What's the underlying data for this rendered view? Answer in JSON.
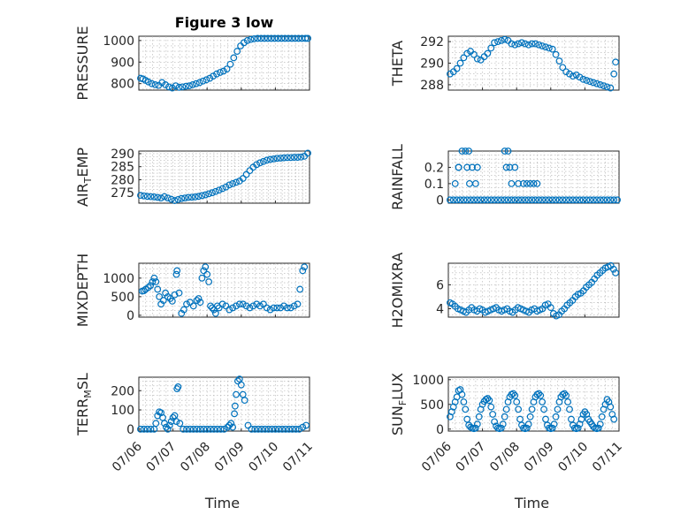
{
  "figure": {
    "title": "Figure 3 low",
    "xlabel": "Time",
    "marker_color": "#0072BD"
  },
  "chart_data": [
    {
      "type": "scatter",
      "title": "Figure 3 low",
      "ylabel": "PRESSURE",
      "ylabel_sub": "",
      "xlim": [
        0,
        5
      ],
      "ylim": [
        770,
        1020
      ],
      "yticks": [
        800,
        900,
        1000
      ],
      "x": [
        0.05,
        0.12,
        0.2,
        0.28,
        0.38,
        0.48,
        0.58,
        0.68,
        0.78,
        0.88,
        0.98,
        1.08,
        1.18,
        1.28,
        1.38,
        1.48,
        1.58,
        1.68,
        1.78,
        1.88,
        1.98,
        2.08,
        2.18,
        2.28,
        2.38,
        2.48,
        2.58,
        2.68,
        2.78,
        2.88,
        2.98,
        3.08,
        3.18,
        3.28,
        3.38,
        3.48,
        3.58,
        3.68,
        3.78,
        3.88,
        3.98,
        4.08,
        4.18,
        4.28,
        4.38,
        4.48,
        4.58,
        4.68,
        4.78,
        4.88,
        4.95
      ],
      "y": [
        825,
        822,
        815,
        808,
        800,
        795,
        792,
        805,
        795,
        785,
        780,
        790,
        783,
        785,
        788,
        790,
        795,
        800,
        805,
        812,
        818,
        825,
        835,
        845,
        852,
        858,
        868,
        890,
        920,
        950,
        975,
        990,
        1000,
        1005,
        1008,
        1010,
        1010,
        1010,
        1010,
        1010,
        1010,
        1010,
        1010,
        1010,
        1010,
        1010,
        1010,
        1010,
        1010,
        1010,
        1010
      ]
    },
    {
      "type": "scatter",
      "ylabel": "THETA",
      "ylabel_sub": "",
      "xlim": [
        0,
        5
      ],
      "ylim": [
        287.5,
        292.5
      ],
      "yticks": [
        288,
        290,
        292
      ],
      "x": [
        0.05,
        0.15,
        0.25,
        0.35,
        0.45,
        0.55,
        0.65,
        0.75,
        0.85,
        0.95,
        1.05,
        1.15,
        1.25,
        1.35,
        1.45,
        1.55,
        1.65,
        1.75,
        1.85,
        1.95,
        2.05,
        2.15,
        2.25,
        2.35,
        2.45,
        2.55,
        2.65,
        2.75,
        2.85,
        2.95,
        3.05,
        3.15,
        3.25,
        3.35,
        3.45,
        3.55,
        3.65,
        3.75,
        3.85,
        3.95,
        4.05,
        4.15,
        4.25,
        4.35,
        4.45,
        4.55,
        4.65,
        4.75,
        4.85,
        4.9
      ],
      "y": [
        289.0,
        289.2,
        289.5,
        290.0,
        290.5,
        290.9,
        291.1,
        290.8,
        290.4,
        290.3,
        290.6,
        290.9,
        291.4,
        291.9,
        292.0,
        292.1,
        292.2,
        292.1,
        291.8,
        291.7,
        291.8,
        291.9,
        291.8,
        291.7,
        291.8,
        291.8,
        291.7,
        291.6,
        291.5,
        291.4,
        291.3,
        290.8,
        290.2,
        289.6,
        289.2,
        289.0,
        288.8,
        288.9,
        288.7,
        288.5,
        288.4,
        288.3,
        288.2,
        288.1,
        288.0,
        287.9,
        287.8,
        287.7,
        289.0,
        290.1
      ]
    },
    {
      "type": "scatter",
      "ylabel": "AIR",
      "ylabel_sub": "T",
      "ylabel_tail": "EMP",
      "xlim": [
        0,
        5
      ],
      "ylim": [
        271,
        291
      ],
      "yticks": [
        275,
        280,
        285,
        290
      ],
      "x": [
        0.05,
        0.15,
        0.25,
        0.35,
        0.45,
        0.55,
        0.65,
        0.75,
        0.85,
        0.95,
        1.05,
        1.15,
        1.25,
        1.35,
        1.45,
        1.55,
        1.65,
        1.75,
        1.85,
        1.95,
        2.05,
        2.15,
        2.25,
        2.35,
        2.45,
        2.55,
        2.65,
        2.75,
        2.85,
        2.95,
        3.05,
        3.15,
        3.25,
        3.35,
        3.45,
        3.55,
        3.65,
        3.75,
        3.85,
        3.95,
        4.05,
        4.15,
        4.25,
        4.35,
        4.45,
        4.55,
        4.65,
        4.75,
        4.85,
        4.95
      ],
      "y": [
        274.0,
        273.8,
        273.6,
        273.5,
        273.4,
        273.2,
        273.0,
        273.5,
        273.0,
        272.5,
        272.0,
        272.4,
        272.8,
        273.0,
        273.2,
        273.3,
        273.4,
        273.6,
        273.9,
        274.2,
        274.6,
        275.0,
        275.5,
        276.0,
        276.6,
        277.2,
        278.0,
        278.5,
        279.0,
        279.5,
        280.5,
        282.0,
        283.5,
        284.8,
        285.8,
        286.5,
        287.0,
        287.5,
        287.8,
        288.0,
        288.2,
        288.3,
        288.4,
        288.5,
        288.5,
        288.6,
        288.6,
        288.7,
        289.0,
        290.2
      ]
    },
    {
      "type": "scatter",
      "ylabel": "RAINFALL",
      "ylabel_sub": "",
      "xlim": [
        0,
        5
      ],
      "ylim": [
        -0.02,
        0.3
      ],
      "yticks": [
        0,
        0.1,
        0.2
      ],
      "x": [
        0.05,
        0.15,
        0.25,
        0.35,
        0.45,
        0.55,
        0.65,
        0.75,
        0.85,
        0.95,
        1.05,
        1.15,
        1.25,
        1.35,
        1.45,
        1.55,
        1.65,
        1.75,
        1.85,
        1.95,
        2.05,
        2.15,
        2.25,
        2.35,
        2.45,
        2.55,
        2.65,
        2.75,
        2.85,
        2.95,
        3.05,
        3.15,
        3.25,
        3.35,
        3.45,
        3.55,
        3.65,
        3.75,
        3.85,
        3.95,
        4.05,
        4.15,
        4.25,
        4.35,
        4.45,
        4.55,
        4.65,
        4.75,
        4.85,
        4.95,
        0.2,
        0.3,
        0.4,
        0.5,
        0.55,
        0.7,
        0.8,
        0.85,
        0.3,
        0.6,
        1.65,
        1.75,
        1.8,
        1.95,
        2.05,
        1.7,
        1.85,
        2.2,
        2.3,
        2.4,
        2.5,
        2.6,
        0.62
      ],
      "y": [
        0,
        0,
        0,
        0,
        0,
        0,
        0,
        0,
        0,
        0,
        0,
        0,
        0,
        0,
        0,
        0,
        0,
        0,
        0,
        0,
        0,
        0,
        0,
        0,
        0,
        0,
        0,
        0,
        0,
        0,
        0,
        0,
        0,
        0,
        0,
        0,
        0,
        0,
        0,
        0,
        0,
        0,
        0,
        0,
        0,
        0,
        0,
        0,
        0,
        0,
        0.1,
        0.2,
        0.3,
        0.3,
        0.2,
        0.2,
        0.1,
        0.2,
        0.2,
        0.3,
        0.3,
        0.3,
        0.2,
        0.2,
        0.1,
        0.2,
        0.1,
        0.1,
        0.1,
        0.1,
        0.1,
        0.1,
        0.1
      ]
    },
    {
      "type": "scatter",
      "ylabel": "MIXDEPTH",
      "ylabel_sub": "",
      "xlim": [
        0,
        5
      ],
      "ylim": [
        -50,
        1400
      ],
      "yticks": [
        0,
        500,
        1000
      ],
      "x": [
        0.1,
        0.15,
        0.2,
        0.28,
        0.34,
        0.4,
        0.45,
        0.5,
        0.55,
        0.6,
        0.65,
        0.72,
        0.78,
        0.85,
        0.92,
        0.98,
        1.05,
        1.1,
        1.12,
        1.18,
        1.25,
        1.32,
        1.4,
        1.5,
        1.6,
        1.7,
        1.75,
        1.8,
        1.85,
        1.9,
        1.95,
        2.0,
        2.05,
        2.1,
        2.15,
        2.2,
        2.25,
        2.3,
        2.35,
        2.45,
        2.55,
        2.65,
        2.75,
        2.85,
        2.95,
        3.05,
        3.15,
        3.25,
        3.35,
        3.45,
        3.55,
        3.65,
        3.75,
        3.85,
        3.95,
        4.05,
        4.15,
        4.25,
        4.35,
        4.45,
        4.55,
        4.65,
        4.72,
        4.8,
        4.85
      ],
      "y": [
        650,
        660,
        700,
        750,
        800,
        900,
        1000,
        900,
        700,
        500,
        300,
        400,
        600,
        500,
        450,
        380,
        550,
        1100,
        1200,
        600,
        50,
        150,
        300,
        350,
        250,
        400,
        450,
        350,
        1000,
        1200,
        1300,
        1100,
        900,
        250,
        200,
        150,
        50,
        250,
        200,
        300,
        250,
        150,
        200,
        250,
        300,
        300,
        250,
        200,
        250,
        300,
        250,
        300,
        200,
        150,
        200,
        200,
        200,
        250,
        200,
        200,
        250,
        300,
        700,
        1200,
        1300
      ]
    },
    {
      "type": "scatter",
      "ylabel": "H2OMIXRA",
      "ylabel_sub": "",
      "xlim": [
        0,
        5
      ],
      "ylim": [
        3.3,
        7.8
      ],
      "yticks": [
        4,
        6
      ],
      "x": [
        0.05,
        0.12,
        0.2,
        0.28,
        0.36,
        0.44,
        0.52,
        0.6,
        0.68,
        0.76,
        0.84,
        0.92,
        1.0,
        1.08,
        1.16,
        1.24,
        1.32,
        1.4,
        1.48,
        1.56,
        1.64,
        1.72,
        1.8,
        1.88,
        1.96,
        2.04,
        2.12,
        2.2,
        2.28,
        2.36,
        2.44,
        2.52,
        2.6,
        2.68,
        2.76,
        2.84,
        2.92,
        3.0,
        3.08,
        3.16,
        3.24,
        3.32,
        3.4,
        3.48,
        3.56,
        3.64,
        3.72,
        3.8,
        3.88,
        3.96,
        4.04,
        4.12,
        4.2,
        4.28,
        4.36,
        4.44,
        4.52,
        4.6,
        4.68,
        4.76,
        4.84,
        4.9
      ],
      "y": [
        4.5,
        4.4,
        4.2,
        4.0,
        3.9,
        3.8,
        3.7,
        3.9,
        4.1,
        3.9,
        3.8,
        4.0,
        3.9,
        3.7,
        3.8,
        3.9,
        4.0,
        4.1,
        3.9,
        3.8,
        3.9,
        4.0,
        3.8,
        3.7,
        3.9,
        4.1,
        4.0,
        3.9,
        3.8,
        3.7,
        3.9,
        4.0,
        3.8,
        3.9,
        4.0,
        4.3,
        4.4,
        4.1,
        3.6,
        3.4,
        3.5,
        3.8,
        4.0,
        4.3,
        4.5,
        4.7,
        5.0,
        5.2,
        5.3,
        5.5,
        5.8,
        6.0,
        6.2,
        6.5,
        6.8,
        7.0,
        7.2,
        7.4,
        7.5,
        7.6,
        7.3,
        7.0
      ]
    },
    {
      "type": "scatter",
      "ylabel": "TERR",
      "ylabel_sub": "M",
      "ylabel_tail": "SL",
      "xlim": [
        0,
        5
      ],
      "ylim": [
        -10,
        270
      ],
      "yticks": [
        0,
        100,
        200
      ],
      "x": [
        0.05,
        0.15,
        0.25,
        0.35,
        0.45,
        0.5,
        0.55,
        0.6,
        0.65,
        0.7,
        0.75,
        0.8,
        0.85,
        0.9,
        0.95,
        1.0,
        1.05,
        1.1,
        1.12,
        1.15,
        1.2,
        1.3,
        1.4,
        1.5,
        1.6,
        1.7,
        1.8,
        1.9,
        2.0,
        2.1,
        2.2,
        2.3,
        2.4,
        2.5,
        2.6,
        2.65,
        2.7,
        2.75,
        2.8,
        2.82,
        2.85,
        2.9,
        2.95,
        3.0,
        3.05,
        3.1,
        3.2,
        3.3,
        3.4,
        3.5,
        3.6,
        3.7,
        3.8,
        3.9,
        4.0,
        4.1,
        4.2,
        4.3,
        4.4,
        4.5,
        4.6,
        4.7,
        4.8,
        4.9
      ],
      "y": [
        0,
        0,
        0,
        0,
        0,
        30,
        70,
        90,
        85,
        60,
        30,
        10,
        0,
        20,
        40,
        60,
        70,
        40,
        210,
        220,
        30,
        0,
        0,
        0,
        0,
        0,
        0,
        0,
        0,
        0,
        0,
        0,
        0,
        0,
        10,
        20,
        30,
        10,
        80,
        120,
        180,
        250,
        260,
        230,
        180,
        150,
        20,
        0,
        0,
        0,
        0,
        0,
        0,
        0,
        0,
        0,
        0,
        0,
        0,
        0,
        0,
        0,
        10,
        20
      ]
    },
    {
      "type": "scatter",
      "ylabel": "SUN",
      "ylabel_sub": "F",
      "ylabel_tail": "LUX",
      "xlim": [
        0,
        5
      ],
      "ylim": [
        -40,
        1050
      ],
      "yticks": [
        0,
        500,
        1000
      ],
      "x": [
        0.05,
        0.1,
        0.15,
        0.2,
        0.25,
        0.3,
        0.35,
        0.4,
        0.45,
        0.5,
        0.55,
        0.6,
        0.65,
        0.7,
        0.75,
        0.8,
        0.85,
        0.9,
        0.95,
        1.0,
        1.05,
        1.1,
        1.15,
        1.2,
        1.25,
        1.3,
        1.35,
        1.4,
        1.45,
        1.5,
        1.55,
        1.6,
        1.65,
        1.7,
        1.75,
        1.8,
        1.85,
        1.9,
        1.95,
        2.0,
        2.05,
        2.1,
        2.15,
        2.2,
        2.25,
        2.3,
        2.35,
        2.4,
        2.45,
        2.5,
        2.55,
        2.6,
        2.65,
        2.7,
        2.75,
        2.8,
        2.85,
        2.9,
        2.95,
        3.0,
        3.05,
        3.1,
        3.15,
        3.2,
        3.25,
        3.3,
        3.35,
        3.4,
        3.45,
        3.5,
        3.55,
        3.6,
        3.65,
        3.7,
        3.75,
        3.8,
        3.85,
        3.9,
        3.95,
        4.0,
        4.05,
        4.1,
        4.15,
        4.2,
        4.25,
        4.3,
        4.35,
        4.4,
        4.45,
        4.5,
        4.55,
        4.6,
        4.65,
        4.7,
        4.75,
        4.8,
        4.85
      ],
      "y": [
        250,
        350,
        450,
        550,
        650,
        780,
        800,
        700,
        550,
        400,
        200,
        80,
        40,
        20,
        10,
        20,
        100,
        250,
        400,
        500,
        560,
        600,
        620,
        580,
        450,
        300,
        150,
        60,
        20,
        10,
        20,
        100,
        250,
        400,
        550,
        650,
        700,
        720,
        680,
        550,
        400,
        200,
        80,
        20,
        10,
        20,
        100,
        250,
        400,
        550,
        650,
        700,
        720,
        680,
        550,
        400,
        200,
        80,
        20,
        10,
        20,
        100,
        250,
        400,
        550,
        650,
        700,
        720,
        680,
        550,
        400,
        200,
        80,
        20,
        10,
        20,
        100,
        200,
        300,
        350,
        300,
        200,
        150,
        100,
        50,
        20,
        10,
        20,
        100,
        250,
        400,
        500,
        600,
        550,
        450,
        300,
        200
      ]
    }
  ],
  "x_axis": {
    "tick_labels": [
      "07/06",
      "07/07",
      "07/08",
      "07/09",
      "07/10",
      "07/11"
    ],
    "xlabel": "Time"
  }
}
